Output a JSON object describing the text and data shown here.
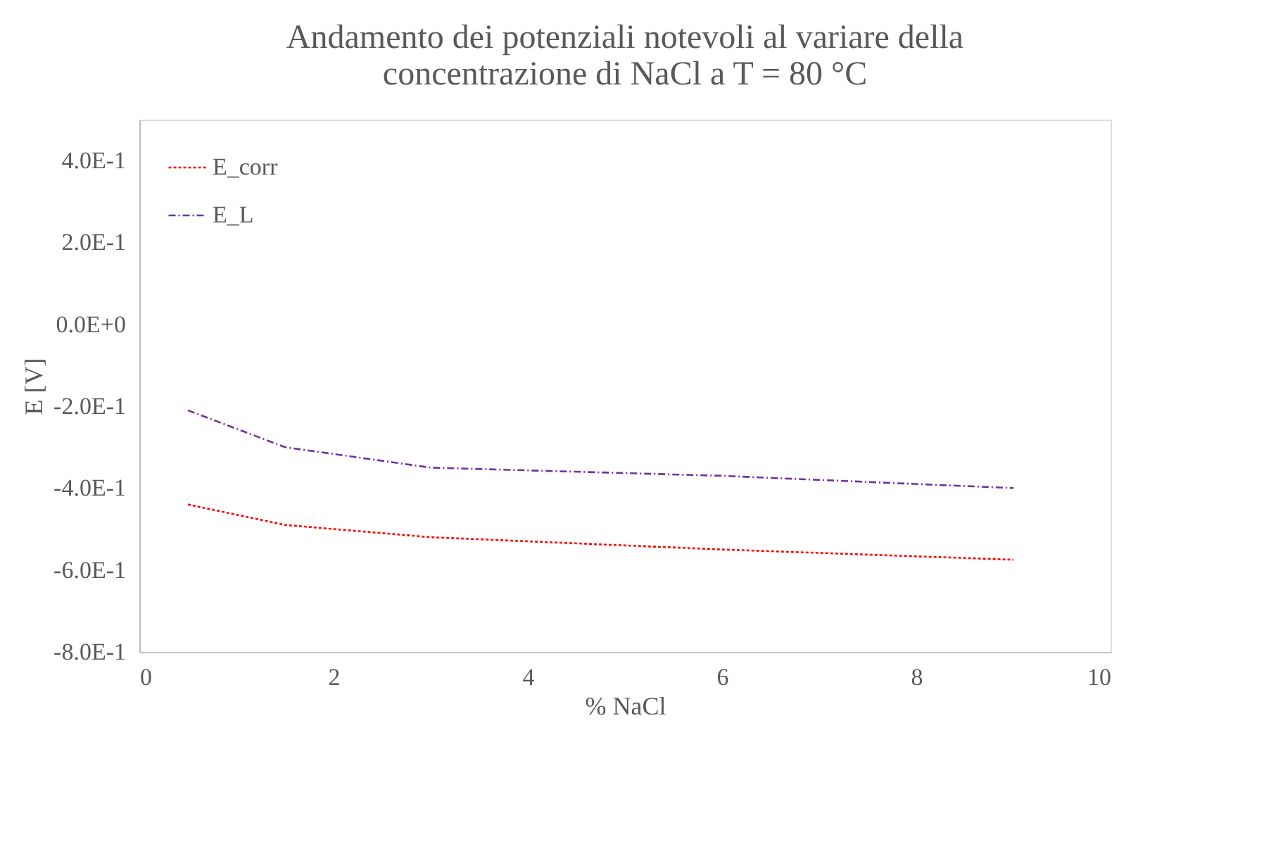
{
  "chart_data": {
    "type": "line",
    "title": [
      "Andamento dei potenziali notevoli al variare della",
      "concentrazione di NaCl a T = 80 °C"
    ],
    "xlabel": "% NaCl",
    "ylabel": "E [V]",
    "x": [
      0.5,
      1.5,
      3,
      6,
      9
    ],
    "series": [
      {
        "name": "E_corr",
        "color": "#ff0000",
        "line_style": "dotted",
        "values": [
          -0.44,
          -0.49,
          -0.52,
          -0.55,
          -0.575
        ]
      },
      {
        "name": "E_L",
        "color": "#7030a0",
        "line_style": "dashed",
        "values": [
          -0.21,
          -0.3,
          -0.35,
          -0.37,
          -0.4
        ]
      }
    ],
    "xlim": [
      0,
      10
    ],
    "xticks": [
      0,
      2,
      4,
      6,
      8,
      10
    ],
    "ylim": [
      -0.8,
      0.5
    ],
    "yticks": [
      {
        "value": -0.8,
        "label": "-8.0E-1"
      },
      {
        "value": -0.6,
        "label": "-6.0E-1"
      },
      {
        "value": -0.4,
        "label": "-4.0E-1"
      },
      {
        "value": -0.2,
        "label": "-2.0E-1"
      },
      {
        "value": 0,
        "label": "0.0E+0"
      },
      {
        "value": 0.2,
        "label": "2.0E-1"
      },
      {
        "value": 0.4,
        "label": "4.0E-1"
      }
    ],
    "grid": false,
    "legend": "top left",
    "marker": "none"
  }
}
